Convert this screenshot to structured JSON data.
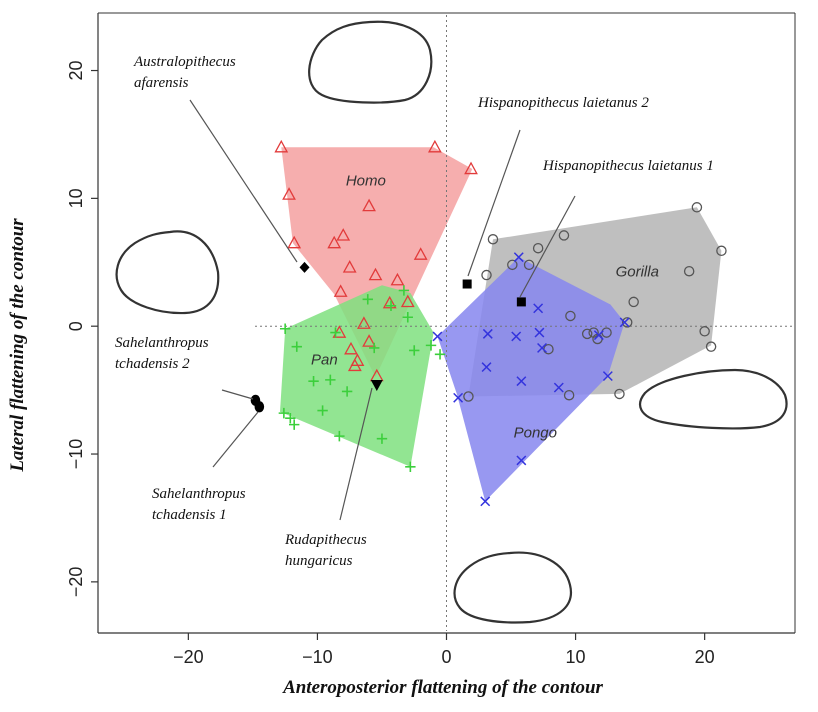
{
  "chart_data": {
    "type": "scatter",
    "xlabel": "Anteroposterior flattening of the contour",
    "ylabel": "Lateral flattening of the contour",
    "xlim": [
      -27,
      27
    ],
    "ylim": [
      -24,
      24.5
    ],
    "xticks": [
      -20,
      -10,
      0,
      10,
      20
    ],
    "yticks": [
      -20,
      -10,
      0,
      10,
      20
    ],
    "xtick_labels": [
      "−20",
      "−10",
      "0",
      "10",
      "20"
    ],
    "ytick_labels": [
      "−20",
      "−10",
      "0",
      "10",
      "20"
    ],
    "reference_lines": {
      "x": 0,
      "y": 0,
      "style": "dotted"
    },
    "grid": false,
    "groups": [
      {
        "name": "Homo",
        "marker": "triangle",
        "color": "#e23b3b",
        "fill": "#f5a0a0",
        "label_at": [
          -7.8,
          11
        ],
        "hull": [
          [
            -12.8,
            14
          ],
          [
            -1,
            14
          ],
          [
            2,
            12.3
          ],
          [
            -5.5,
            -4
          ],
          [
            -8.7,
            2.5
          ],
          [
            -11.9,
            6.5
          ]
        ],
        "points": [
          [
            -12.8,
            14
          ],
          [
            -0.9,
            14
          ],
          [
            1.9,
            12.3
          ],
          [
            -12.2,
            10.3
          ],
          [
            -6,
            9.4
          ],
          [
            -8,
            7.1
          ],
          [
            -8.7,
            6.5
          ],
          [
            -11.8,
            6.5
          ],
          [
            -2,
            5.6
          ],
          [
            -7.5,
            4.6
          ],
          [
            -5.5,
            4
          ],
          [
            -3.8,
            3.6
          ],
          [
            -8.2,
            2.7
          ],
          [
            -4.4,
            1.8
          ],
          [
            -3,
            1.9
          ],
          [
            -6.4,
            0.2
          ],
          [
            -8.3,
            -0.5
          ],
          [
            -6,
            -1.2
          ],
          [
            -7.4,
            -1.8
          ],
          [
            -6.9,
            -2.7
          ],
          [
            -7.1,
            -3.1
          ],
          [
            -5.4,
            -3.9
          ]
        ]
      },
      {
        "name": "Pan",
        "marker": "plus",
        "color": "#3ccf3c",
        "fill": "#7fe07f",
        "label_at": [
          -10.5,
          -3
        ],
        "hull": [
          [
            -12.5,
            -0.2
          ],
          [
            -5,
            3.2
          ],
          [
            -2.8,
            2.6
          ],
          [
            -1,
            -0.5
          ],
          [
            -2.8,
            -11
          ],
          [
            -12.9,
            -6.7
          ]
        ],
        "points": [
          [
            -12.5,
            -0.2
          ],
          [
            -11.6,
            -1.6
          ],
          [
            -12.6,
            -6.8
          ],
          [
            -12.1,
            -7.2
          ],
          [
            -11.8,
            -7.7
          ],
          [
            -10.3,
            -4.3
          ],
          [
            -9.6,
            -6.6
          ],
          [
            -9,
            -4.2
          ],
          [
            -8.6,
            -0.5
          ],
          [
            -8.3,
            -8.6
          ],
          [
            -7.7,
            -5.1
          ],
          [
            -6.1,
            2.1
          ],
          [
            -5.6,
            -1.7
          ],
          [
            -5,
            -8.8
          ],
          [
            -4.3,
            1.6
          ],
          [
            -3.3,
            2.8
          ],
          [
            -3,
            0.7
          ],
          [
            -2.8,
            -11
          ],
          [
            -2.5,
            -1.9
          ],
          [
            -1.2,
            -1.5
          ],
          [
            -0.5,
            -2.2
          ]
        ]
      },
      {
        "name": "Gorilla",
        "marker": "circle",
        "color": "#555555",
        "fill": "#b4b4b4",
        "label_at": [
          13.1,
          3.9
        ],
        "hull": [
          [
            3.6,
            6.8
          ],
          [
            19.4,
            9.3
          ],
          [
            21.3,
            5.9
          ],
          [
            20.5,
            -1.5
          ],
          [
            13.4,
            -5.3
          ],
          [
            1.7,
            -5.5
          ]
        ],
        "points": [
          [
            3.6,
            6.8
          ],
          [
            6.4,
            4.8
          ],
          [
            7.1,
            6.1
          ],
          [
            9.1,
            7.1
          ],
          [
            19.4,
            9.3
          ],
          [
            21.3,
            5.9
          ],
          [
            18.8,
            4.3
          ],
          [
            3.1,
            4
          ],
          [
            14.5,
            1.9
          ],
          [
            9.6,
            0.8
          ],
          [
            14,
            0.3
          ],
          [
            12.4,
            -0.5
          ],
          [
            11.4,
            -0.5
          ],
          [
            11.7,
            -1
          ],
          [
            10.9,
            -0.6
          ],
          [
            20,
            -0.4
          ],
          [
            20.5,
            -1.6
          ],
          [
            7.9,
            -1.8
          ],
          [
            9.5,
            -5.4
          ],
          [
            13.4,
            -5.3
          ],
          [
            1.7,
            -5.5
          ],
          [
            5.1,
            4.8
          ]
        ]
      },
      {
        "name": "Pongo",
        "marker": "x",
        "color": "#3333dd",
        "fill": "#8686ef",
        "label_at": [
          5.2,
          -8.7
        ],
        "hull": [
          [
            5.6,
            5.4
          ],
          [
            12.7,
            1.7
          ],
          [
            13.8,
            0.3
          ],
          [
            12.5,
            -3.9
          ],
          [
            3,
            -13.7
          ],
          [
            0.8,
            -5.3
          ],
          [
            -0.7,
            -0.8
          ]
        ],
        "points": [
          [
            5.6,
            5.4
          ],
          [
            7.1,
            1.4
          ],
          [
            7.2,
            -0.5
          ],
          [
            7.4,
            -1.7
          ],
          [
            5.4,
            -0.8
          ],
          [
            3.2,
            -0.6
          ],
          [
            3.1,
            -3.2
          ],
          [
            5.8,
            -4.3
          ],
          [
            8.7,
            -4.8
          ],
          [
            11.8,
            -0.7
          ],
          [
            13.8,
            0.3
          ],
          [
            12.5,
            -3.9
          ],
          [
            0.9,
            -5.6
          ],
          [
            3,
            -13.7
          ],
          [
            5.8,
            -10.5
          ],
          [
            -0.7,
            -0.8
          ]
        ]
      }
    ],
    "specimens": [
      {
        "name": "Australopithecus afarensis",
        "marker": "diamond",
        "x": -11,
        "y": 4.6,
        "label_lines": [
          "Australopithecus",
          "afarensis"
        ]
      },
      {
        "name": "Hispanopithecus laietanus 2",
        "marker": "square",
        "x": 1.6,
        "y": 3.3,
        "label_lines": [
          "Hispanopithecus laietanus 2"
        ]
      },
      {
        "name": "Hispanopithecus laietanus 1",
        "marker": "square",
        "x": 5.8,
        "y": 1.9,
        "label_lines": [
          "Hispanopithecus laietanus 1"
        ]
      },
      {
        "name": "Sahelanthropus tchadensis 2",
        "marker": "filled-circle",
        "x": -14.8,
        "y": -5.8,
        "label_lines": [
          "Sahelanthropus",
          "tchadensis 2"
        ]
      },
      {
        "name": "Sahelanthropus tchadensis 1",
        "marker": "filled-circle",
        "x": -14.5,
        "y": -6.3,
        "label_lines": [
          "Sahelanthropus",
          "tchadensis 1"
        ]
      },
      {
        "name": "Rudapithecus hungaricus",
        "marker": "triangle-down",
        "x": -5.4,
        "y": -4.6,
        "label_lines": [
          "Rudapithecus",
          "hungaricus"
        ]
      }
    ],
    "outline_shapes": [
      "round-outline-top",
      "round-outline-left",
      "flat-outline-right",
      "flat-outline-bottom"
    ]
  }
}
